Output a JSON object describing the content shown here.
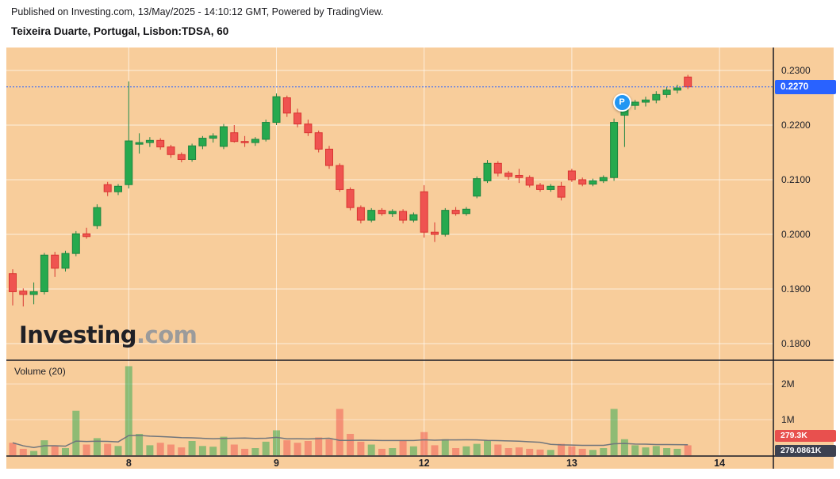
{
  "header": {
    "published_line": "Published on Investing.com, 13/May/2025 - 14:10:12 GMT, Powered by TradingView.",
    "symbol_line": "Teixeira Duarte, Portugal, Lisbon:TDSA, 60"
  },
  "watermark": {
    "bold": "Investing",
    "light": ".com"
  },
  "colors": {
    "background": "#f8cd9b",
    "up": "#26a94e",
    "up_border": "#1d8540",
    "down": "#ef5350",
    "down_border": "#d93531",
    "grid": "rgba(255,255,255,0.65)",
    "grid_faint": "rgba(255,255,255,0.45)",
    "separator": "#171a24",
    "axis_text": "#20222a",
    "price_badge_bg": "#2962ff",
    "volume_badge_bg": "#e8504e",
    "ma_badge_bg": "#3c4150",
    "volume_up": "rgba(38,169,78,0.5)",
    "volume_down": "rgba(239,83,80,0.5)",
    "ma_line": "#70757c",
    "last_price_line": "#2962ff",
    "marker_bg": "#2196f3"
  },
  "chart_data": {
    "type": "candlestick",
    "symbol": "Lisbon:TDSA",
    "interval": "60",
    "title": "Teixeira Duarte, Portugal, Lisbon:TDSA, 60",
    "price_ticks": [
      "0.2300",
      "0.2200",
      "0.2100",
      "0.2000",
      "0.1900",
      "0.1800"
    ],
    "time_ticks": [
      {
        "label": "8",
        "index": 11
      },
      {
        "label": "9",
        "index": 25
      },
      {
        "label": "12",
        "index": 39
      },
      {
        "label": "13",
        "index": 53
      },
      {
        "label": "14",
        "index": 67
      }
    ],
    "last_price": 0.227,
    "last_price_label": "0.2270",
    "volume_label": "Volume (20)",
    "volume_ticks": [
      {
        "label": "2M",
        "value": 2000
      },
      {
        "label": "1M",
        "value": 1000
      }
    ],
    "last_volume_label": "279.3K",
    "volume_ma_label": "279.0861K",
    "marker": {
      "label": "P",
      "candle_index": 57
    },
    "candle_format": "ohlc",
    "candles": [
      [
        0.1928,
        0.1936,
        0.187,
        0.1895
      ],
      [
        0.1896,
        0.1901,
        0.1868,
        0.189
      ],
      [
        0.189,
        0.1912,
        0.1872,
        0.1895
      ],
      [
        0.1895,
        0.1966,
        0.189,
        0.1962
      ],
      [
        0.1962,
        0.1968,
        0.1922,
        0.1938
      ],
      [
        0.1938,
        0.197,
        0.1932,
        0.1965
      ],
      [
        0.1965,
        0.2006,
        0.196,
        0.2001
      ],
      [
        0.2001,
        0.2012,
        0.1992,
        0.1996
      ],
      [
        0.2016,
        0.2055,
        0.201,
        0.2049
      ],
      [
        0.2091,
        0.2096,
        0.207,
        0.2078
      ],
      [
        0.2078,
        0.2092,
        0.2072,
        0.2088
      ],
      [
        0.2091,
        0.228,
        0.2084,
        0.2171
      ],
      [
        0.2165,
        0.2185,
        0.2148,
        0.2168
      ],
      [
        0.2168,
        0.2178,
        0.216,
        0.2172
      ],
      [
        0.2172,
        0.2176,
        0.2155,
        0.216
      ],
      [
        0.216,
        0.2164,
        0.214,
        0.2146
      ],
      [
        0.2146,
        0.215,
        0.2132,
        0.2137
      ],
      [
        0.2137,
        0.2166,
        0.2133,
        0.2162
      ],
      [
        0.2162,
        0.218,
        0.2156,
        0.2176
      ],
      [
        0.2176,
        0.2185,
        0.2168,
        0.218
      ],
      [
        0.2161,
        0.2202,
        0.2156,
        0.2197
      ],
      [
        0.2186,
        0.22,
        0.2168,
        0.217
      ],
      [
        0.217,
        0.218,
        0.216,
        0.2168
      ],
      [
        0.2168,
        0.2178,
        0.2162,
        0.2174
      ],
      [
        0.2174,
        0.221,
        0.217,
        0.2205
      ],
      [
        0.2205,
        0.2258,
        0.22,
        0.2252
      ],
      [
        0.225,
        0.2254,
        0.2215,
        0.2222
      ],
      [
        0.2222,
        0.223,
        0.2196,
        0.2202
      ],
      [
        0.2202,
        0.221,
        0.218,
        0.2186
      ],
      [
        0.2186,
        0.219,
        0.215,
        0.2156
      ],
      [
        0.2156,
        0.2162,
        0.212,
        0.2126
      ],
      [
        0.2126,
        0.213,
        0.2078,
        0.2082
      ],
      [
        0.2082,
        0.2086,
        0.2044,
        0.2049
      ],
      [
        0.2049,
        0.2053,
        0.202,
        0.2026
      ],
      [
        0.2026,
        0.2048,
        0.2022,
        0.2044
      ],
      [
        0.2044,
        0.2048,
        0.2034,
        0.2038
      ],
      [
        0.2038,
        0.2046,
        0.2032,
        0.2042
      ],
      [
        0.2042,
        0.2046,
        0.202,
        0.2026
      ],
      [
        0.2026,
        0.204,
        0.2022,
        0.2036
      ],
      [
        0.2078,
        0.209,
        0.1994,
        0.2004
      ],
      [
        0.2004,
        0.2022,
        0.1986,
        0.2
      ],
      [
        0.2,
        0.2048,
        0.1996,
        0.2044
      ],
      [
        0.2044,
        0.205,
        0.2034,
        0.2038
      ],
      [
        0.2038,
        0.205,
        0.2034,
        0.2046
      ],
      [
        0.207,
        0.2106,
        0.2066,
        0.2102
      ],
      [
        0.2098,
        0.2136,
        0.2094,
        0.213
      ],
      [
        0.213,
        0.2134,
        0.2106,
        0.2112
      ],
      [
        0.2112,
        0.2116,
        0.21,
        0.2106
      ],
      [
        0.2108,
        0.212,
        0.2094,
        0.2104
      ],
      [
        0.2104,
        0.2108,
        0.2086,
        0.209
      ],
      [
        0.209,
        0.2094,
        0.2078,
        0.2082
      ],
      [
        0.2082,
        0.2092,
        0.2078,
        0.2088
      ],
      [
        0.2088,
        0.2096,
        0.2062,
        0.2068
      ],
      [
        0.2116,
        0.212,
        0.2096,
        0.21
      ],
      [
        0.21,
        0.2104,
        0.2088,
        0.2092
      ],
      [
        0.2092,
        0.2102,
        0.2088,
        0.2098
      ],
      [
        0.2098,
        0.2108,
        0.2094,
        0.2104
      ],
      [
        0.2104,
        0.2212,
        0.2098,
        0.2205
      ],
      [
        0.2218,
        0.2242,
        0.216,
        0.2236
      ],
      [
        0.2236,
        0.2246,
        0.2228,
        0.2242
      ],
      [
        0.2242,
        0.2252,
        0.2234,
        0.2246
      ],
      [
        0.2246,
        0.2262,
        0.224,
        0.2256
      ],
      [
        0.2256,
        0.227,
        0.225,
        0.2264
      ],
      [
        0.2264,
        0.2274,
        0.2258,
        0.2268
      ],
      [
        0.2288,
        0.2292,
        0.2266,
        0.227
      ]
    ],
    "volumes_k": [
      350,
      180,
      120,
      420,
      260,
      200,
      1250,
      300,
      480,
      320,
      260,
      2500,
      600,
      280,
      350,
      300,
      220,
      400,
      260,
      240,
      520,
      300,
      180,
      200,
      380,
      700,
      420,
      350,
      400,
      500,
      450,
      1300,
      600,
      380,
      300,
      180,
      200,
      420,
      250,
      650,
      280,
      450,
      200,
      250,
      320,
      420,
      300,
      200,
      220,
      180,
      160,
      150,
      320,
      250,
      180,
      150,
      200,
      1300,
      450,
      280,
      220,
      260,
      200,
      180,
      279.3
    ]
  }
}
